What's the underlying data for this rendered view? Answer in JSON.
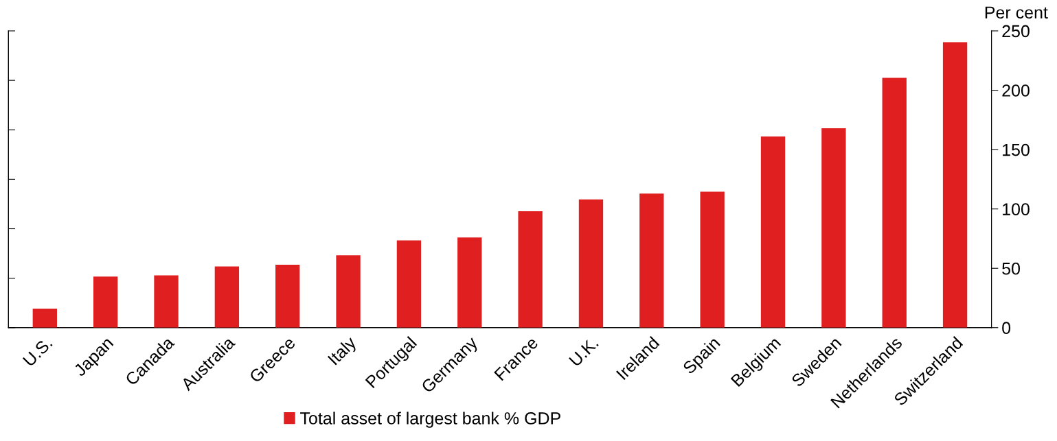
{
  "chart_data": {
    "type": "bar",
    "categories": [
      "U.S.",
      "Japan",
      "Canada",
      "Australia",
      "Greece",
      "Italy",
      "Portugal",
      "Germany",
      "France",
      "U.K.",
      "Ireland",
      "Spain",
      "Belgium",
      "Sweden",
      "Netherlands",
      "Switzerland"
    ],
    "series": [
      {
        "name": "Total asset of largest bank % GDP",
        "color": "#e02020",
        "axis": "y2",
        "values": [
          16,
          43,
          44,
          51.5,
          53,
          61,
          73.5,
          76,
          98,
          108,
          113,
          114.5,
          161,
          168,
          210.5,
          240.5
        ]
      }
    ],
    "y2label": "Per cent",
    "y2lim": [
      0,
      250
    ],
    "y2ticks": [
      0,
      50,
      100,
      150,
      200,
      250
    ],
    "grid": false,
    "legend": "bottom"
  }
}
